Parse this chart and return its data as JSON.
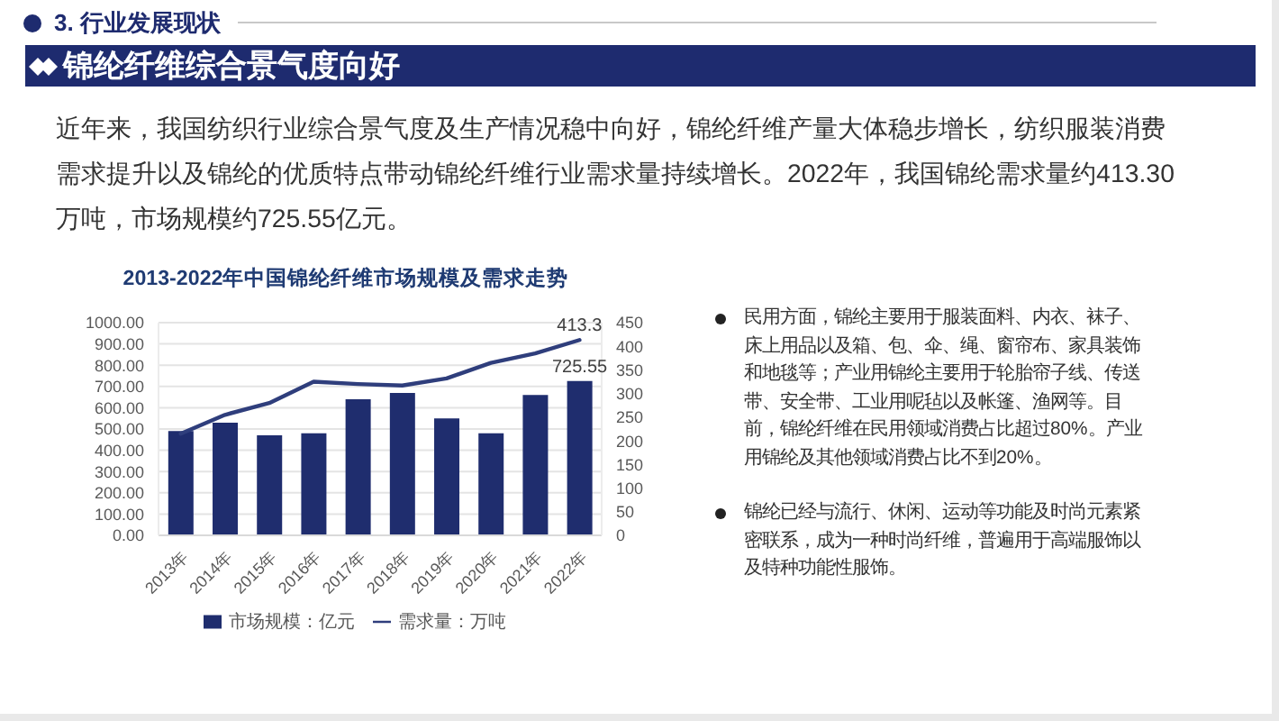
{
  "chart_data": {
    "type": "bar",
    "title": "2013-2022年中国锦纶纤维市场规模及需求走势",
    "annotations": [
      "3. 行业发展现状",
      "锦纶纤维综合景气度向好",
      "近年来，我国纺织行业综合景气度及生产情况稳中向好，锦纶纤维产量大体稳步增长，纺织服装消费需求提升以及锦纶的优质特点带动锦纶纤维行业需求量持续增长。2022年，我国锦纶需求量约413.30万吨，市场规模约725.55亿元。",
      "民用方面，锦纶主要用于服装面料、内衣、袜子、床上用品以及箱、包、伞、绳、窗帘布、家具装饰和地毯等；产业用锦纶主要用于轮胎帘子线、传送带、安全带、工业用呢毡以及帐篷、渔网等。目前，锦纶纤维在民用领域消费占比超过80%。产业用锦纶及其他领域消费占比不到20%。",
      "锦纶已经与流行、休闲、运动等功能及时尚元素紧密联系，成为一种时尚纤维，普遍用于高端服饰以及特种功能性服饰。"
    ],
    "categories": [
      "2013年",
      "2014年",
      "2015年",
      "2016年",
      "2017年",
      "2018年",
      "2019年",
      "2020年",
      "2021年",
      "2022年"
    ],
    "series": [
      {
        "name": "市场规模：亿元",
        "color": "#1f2d6e",
        "values": [
          490,
          530,
          470,
          480,
          640,
          670,
          550,
          480,
          660,
          725.55
        ],
        "value_labels": [
          null,
          null,
          null,
          null,
          null,
          null,
          null,
          null,
          null,
          "725.55"
        ]
      },
      {
        "name": "需求量：万吨",
        "type": "line",
        "axis": "y2",
        "color": "#2f3e7c",
        "values": [
          215,
          255,
          280,
          325,
          320,
          317,
          332,
          365,
          385,
          413.3
        ],
        "value_labels": [
          null,
          null,
          null,
          null,
          null,
          null,
          null,
          null,
          null,
          "413.3"
        ]
      }
    ],
    "ylim": [
      0,
      1000
    ],
    "yticks": [
      {
        "value": 0,
        "label": "0.00"
      },
      {
        "value": 100,
        "label": "100.00"
      },
      {
        "value": 200,
        "label": "200.00"
      },
      {
        "value": 300,
        "label": "300.00"
      },
      {
        "value": 400,
        "label": "400.00"
      },
      {
        "value": 500,
        "label": "500.00"
      },
      {
        "value": 600,
        "label": "600.00"
      },
      {
        "value": 700,
        "label": "700.00"
      },
      {
        "value": 800,
        "label": "800.00"
      },
      {
        "value": 900,
        "label": "900.00"
      },
      {
        "value": 1000,
        "label": "1000.00"
      }
    ],
    "y2lim": [
      0,
      450
    ],
    "y2ticks": [
      0,
      50,
      100,
      150,
      200,
      250,
      300,
      350,
      400,
      450
    ],
    "grid": "y",
    "legend": "bottom"
  }
}
